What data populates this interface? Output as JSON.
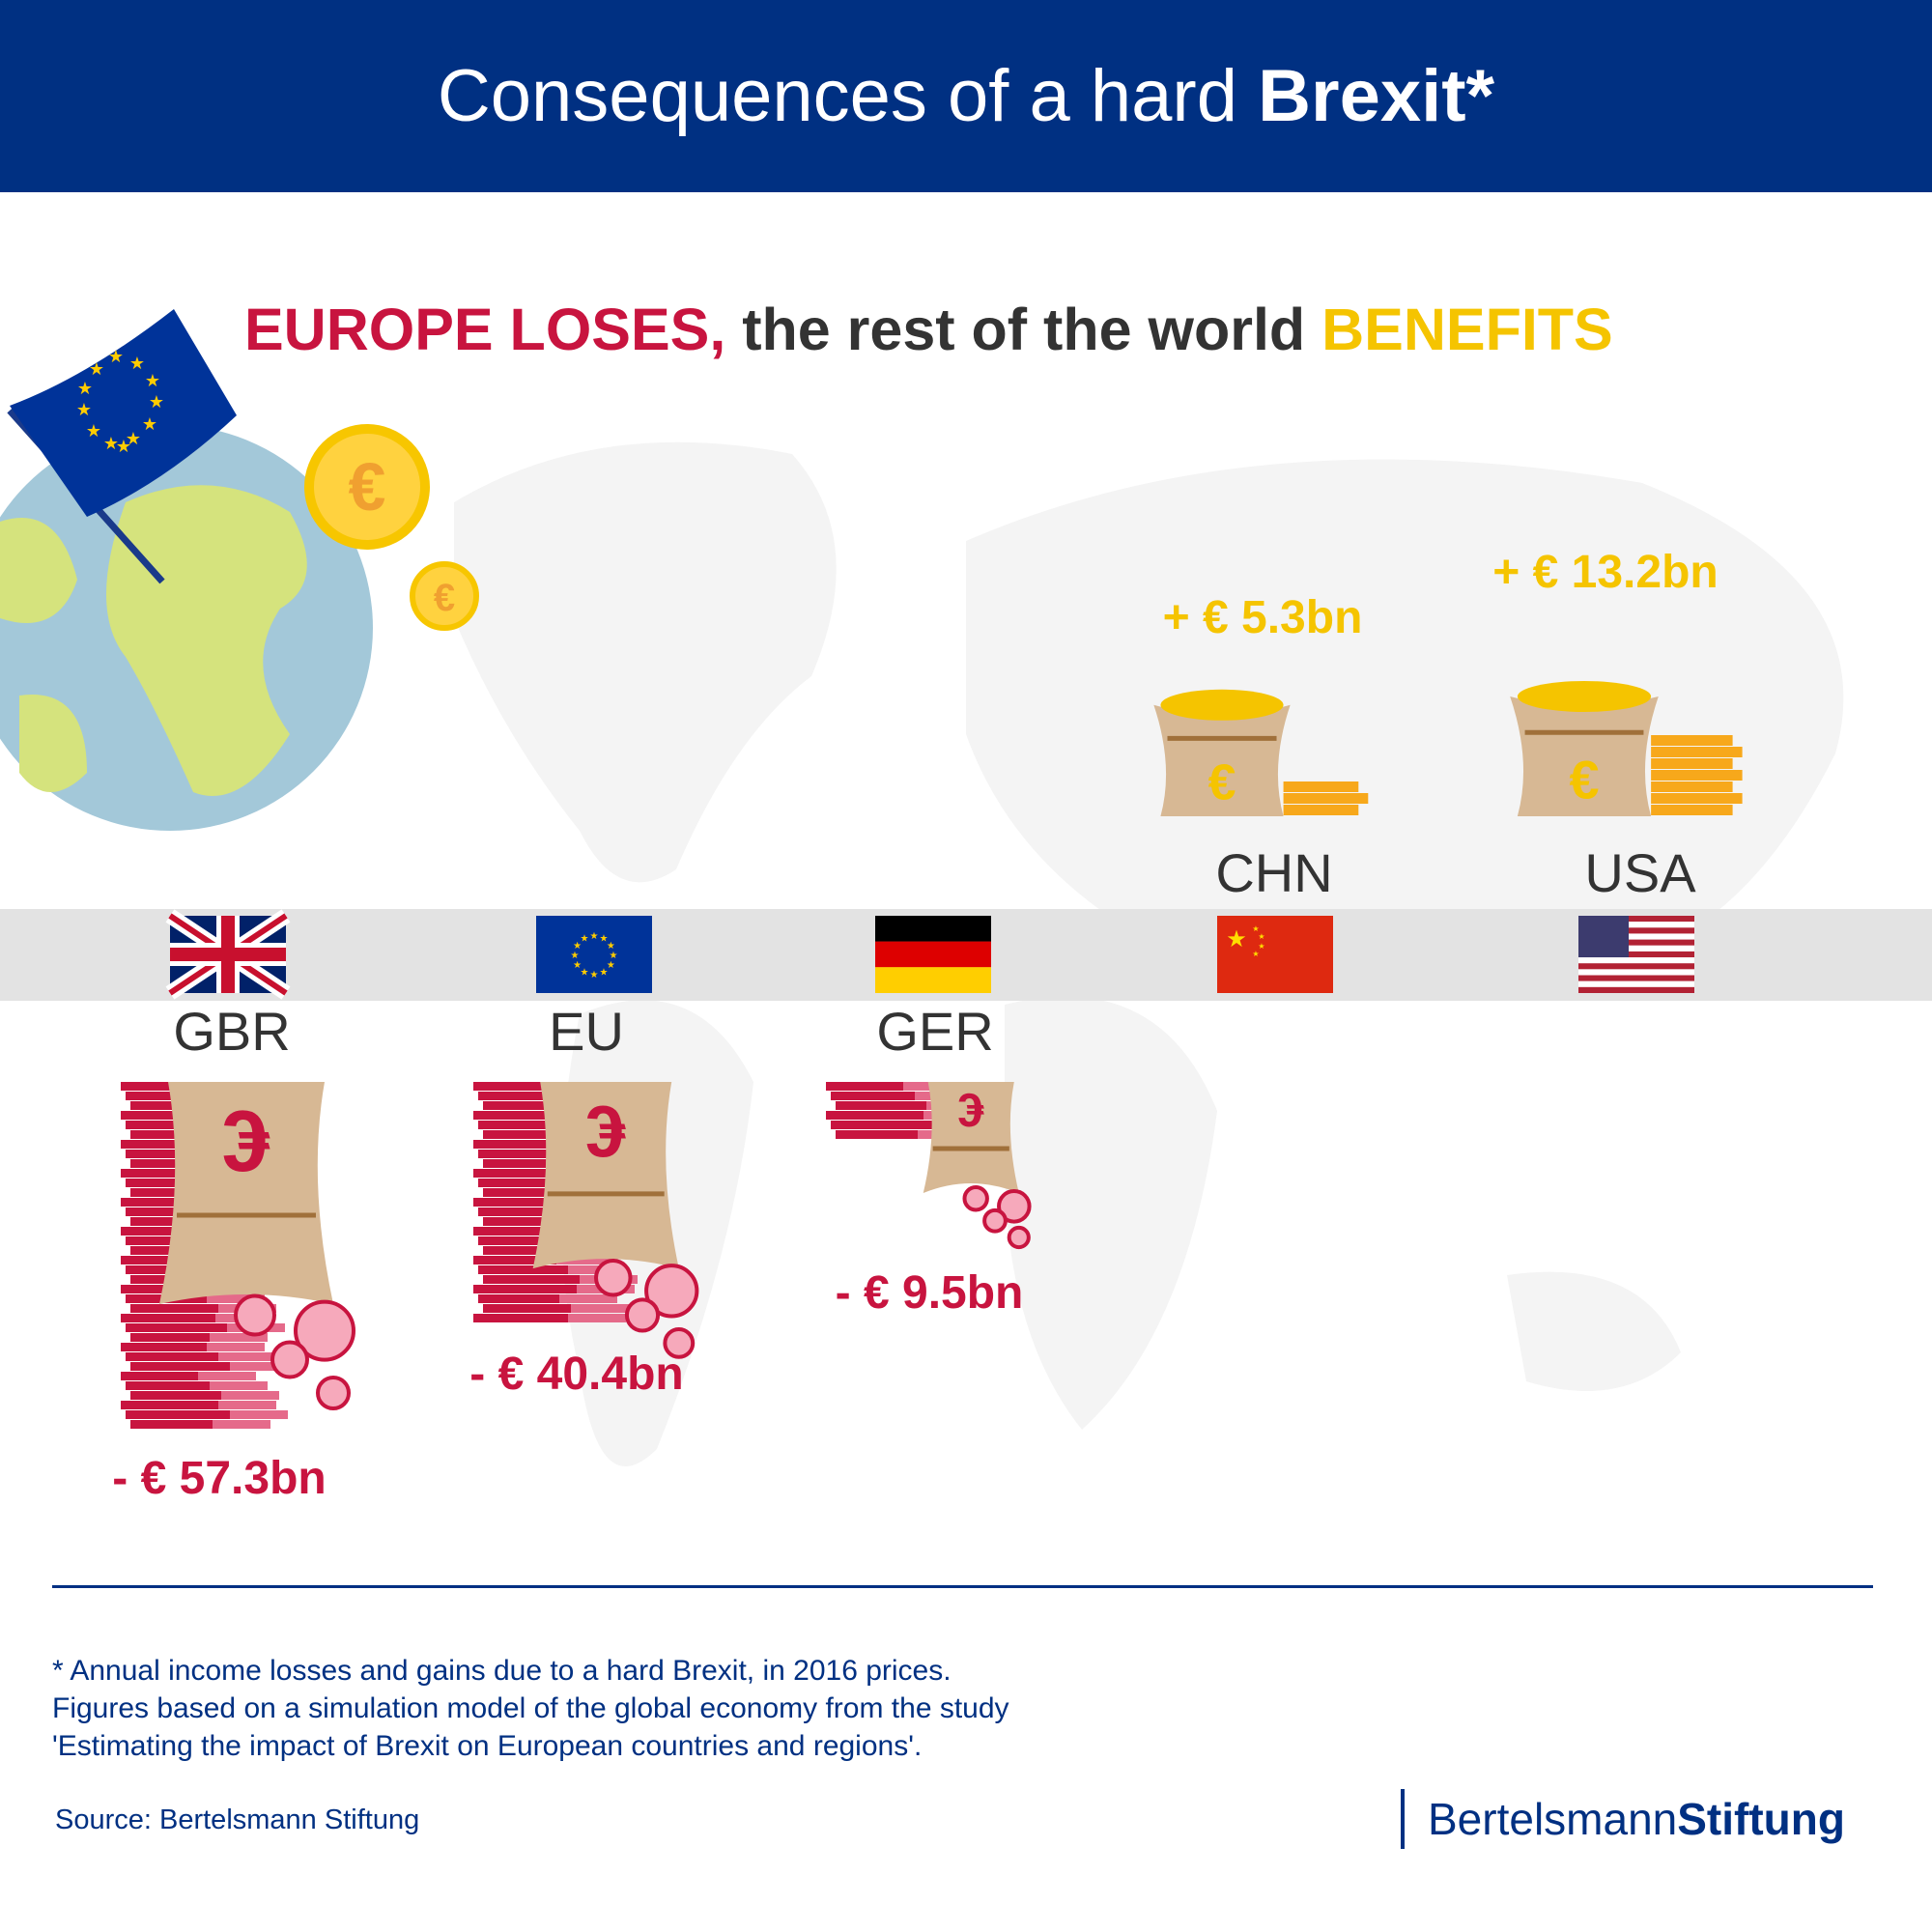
{
  "header": {
    "title_regular": "Consequences of a hard ",
    "title_bold": "Brexit",
    "title_suffix": "*"
  },
  "subtitle": {
    "part1": "EUROPE LOSES,",
    "part2": " the rest of the world ",
    "part3": "BENEFITS"
  },
  "colors": {
    "header": "#003082",
    "loss": "#c8143f",
    "gain": "#f5c400",
    "band": "#e3e3e3",
    "bag": "#d7b894"
  },
  "icons": {
    "coin": "€"
  },
  "chart_data": {
    "type": "pictogram",
    "unit": "€ bn",
    "categories": [
      "GBR",
      "EU",
      "GER",
      "CHN",
      "USA"
    ],
    "values": [
      -57.3,
      -40.4,
      -9.5,
      5.3,
      13.2
    ],
    "labels": [
      "- € 57.3bn",
      "- € 40.4bn",
      "- € 9.5bn",
      "+ € 5.3bn",
      "+ € 13.2bn"
    ]
  },
  "footnote": {
    "line1": "* Annual income losses and gains due to a hard Brexit, in 2016 prices.",
    "line2": "Figures based on a simulation model of the global economy from the study",
    "line3": "'Estimating the impact of Brexit on European countries and regions'."
  },
  "source": "Source: Bertelsmann Stiftung",
  "logo": {
    "part1": "Bertelsmann",
    "part2": "Stiftung"
  }
}
